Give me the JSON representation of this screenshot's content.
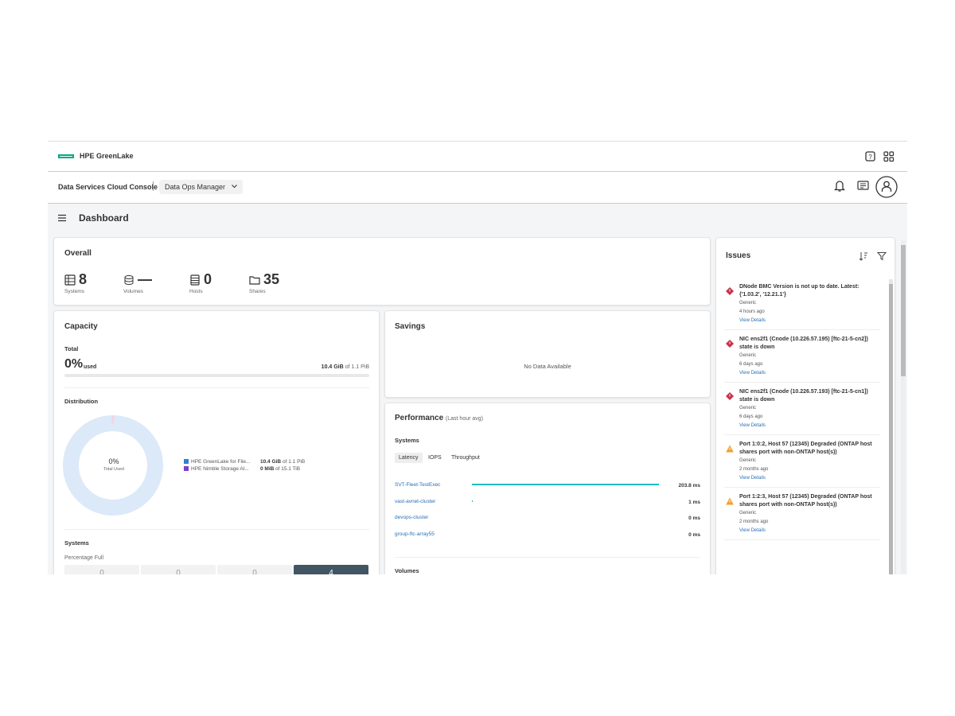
{
  "header": {
    "brand": "HPE GreenLake",
    "console": "Data Services Cloud Console",
    "app": "Data Ops Manager"
  },
  "page_title": "Dashboard",
  "overall": {
    "title": "Overall",
    "stats": [
      {
        "value": 8,
        "label": "Systems"
      },
      {
        "value": "—",
        "label": "Volumes"
      },
      {
        "value": 0,
        "label": "Hosts"
      },
      {
        "value": 35,
        "label": "Shares"
      }
    ]
  },
  "capacity": {
    "title": "Capacity",
    "total_label": "Total",
    "percent": "0%",
    "used": "used",
    "amount": "10.4 GiB",
    "of_total": "of 1.1 PiB",
    "distribution": "Distribution",
    "donut_value": "0%",
    "donut_label": "Total Used",
    "legend": [
      {
        "name": "HPE GreenLake for File...",
        "amount": "10.4 GiB",
        "of_total": "of 1.1 PiB",
        "color": "#2f7fd6"
      },
      {
        "name": "HPE Nimble Storage Al...",
        "amount": "0 MiB",
        "of_total": "of 15.1 TiB",
        "color": "#7b3fd0"
      }
    ],
    "systems_title": "Systems",
    "percentage_full": "Percentage Full",
    "buckets": [
      "0",
      "0",
      "0",
      "4"
    ]
  },
  "savings": {
    "title": "Savings",
    "empty": "No Data Available"
  },
  "performance": {
    "title": "Performance",
    "subtitle": "(Last hour avg)",
    "systems": "Systems",
    "tabs": [
      "Latency",
      "IOPS",
      "Throughput"
    ],
    "rows": [
      {
        "name": "SVT-Fleet-TestExec",
        "value": 203.8,
        "label": "203.8 ms"
      },
      {
        "name": "vast-avnet-cluster",
        "value": 1,
        "label": "1 ms"
      },
      {
        "name": "devops-cluster",
        "value": 0,
        "label": "0 ms"
      },
      {
        "name": "group-ftc-array55",
        "value": 0,
        "label": "0 ms"
      }
    ],
    "volumes": "Volumes"
  },
  "issues": {
    "title": "Issues",
    "items": [
      {
        "title": "DNode BMC Version is not up to date. Latest: {'1.03.2', '12.21.1'}",
        "category": "Generic",
        "time": "4 hours ago",
        "link": "View Details",
        "color": "#c8324a"
      },
      {
        "title": "NIC ens2f1 (Cnode (10.226.57.195) [ftc-21-5-cn2]) state is down",
        "category": "Generic",
        "time": "6 days ago",
        "link": "View Details",
        "color": "#c8324a"
      },
      {
        "title": "NIC ens2f1 (Cnode (10.226.57.193) [ftc-21-5-cn1]) state is down",
        "category": "Generic",
        "time": "6 days ago",
        "link": "View Details",
        "color": "#c8324a"
      },
      {
        "title": "Port 1:0:2, Host 57 (12345) Degraded (ONTAP host shares port with non-ONTAP host(s))",
        "category": "Generic",
        "time": "2 months ago",
        "link": "View Details",
        "color": "#f0a030"
      },
      {
        "title": "Port 1:2:3, Host 57 (12345) Degraded (ONTAP host shares port with non-ONTAP host(s))",
        "category": "Generic",
        "time": "2 months ago",
        "link": "View Details",
        "color": "#f0a030"
      }
    ]
  }
}
